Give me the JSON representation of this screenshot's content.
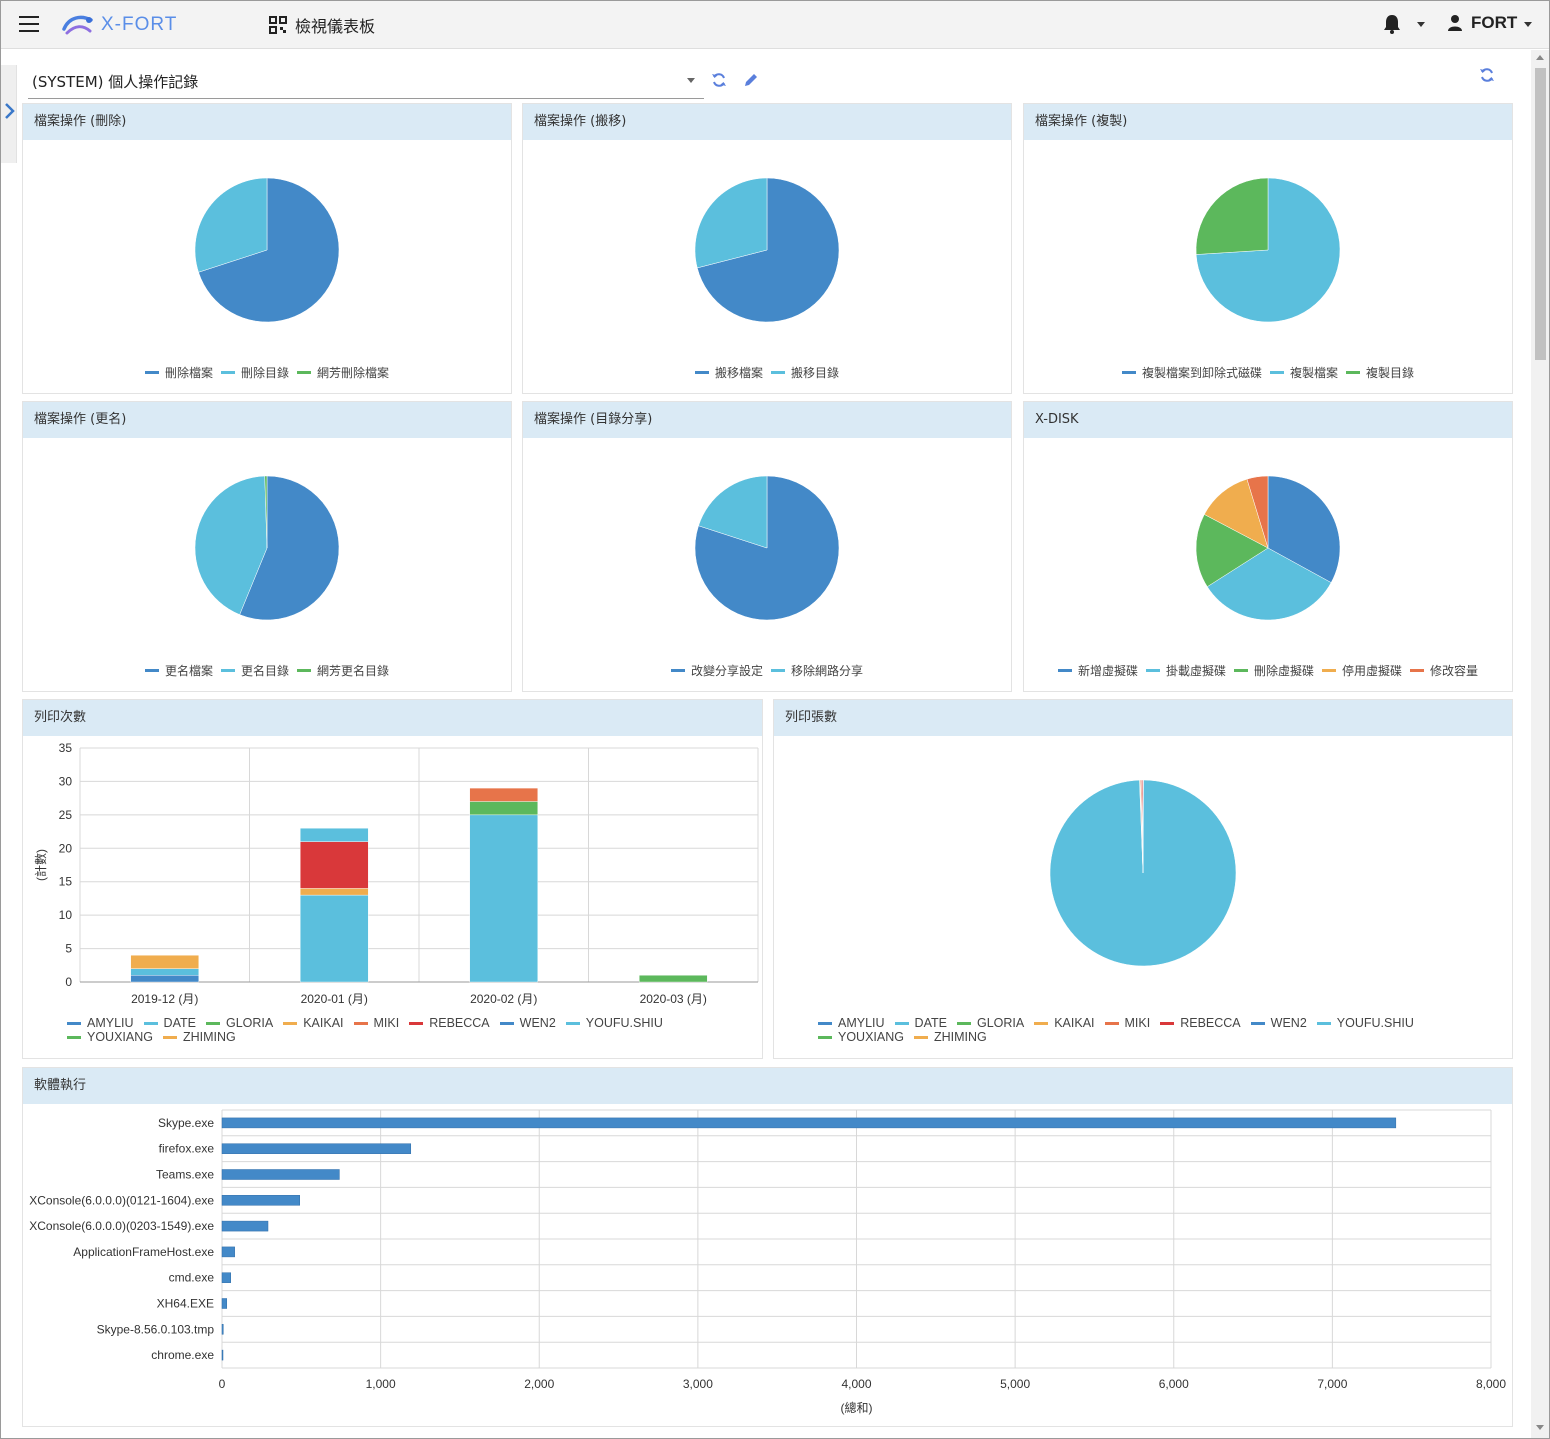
{
  "app": {
    "brand": "X-FORT",
    "dashboard_title": "檢視儀表板",
    "user": "FORT"
  },
  "selector": {
    "value": "(SYSTEM) 個人操作記錄"
  },
  "icons": {
    "menu": "hamburger-icon",
    "logo": "xfort-logo-icon",
    "dashboard": "qr-grid-icon",
    "bell": "bell-icon",
    "user": "user-icon",
    "refresh": "refresh-icon",
    "edit": "pencil-icon",
    "sidebar": "chevron-right-icon"
  },
  "colors": {
    "blue": "#4389c8",
    "cyan": "#5bbfdd",
    "green": "#5cb85c",
    "amber": "#f0ad4e",
    "orange": "#e7744a",
    "red": "#d9383a",
    "header": "#daeaf5"
  },
  "panels": [
    {
      "title": "檔案操作 (刪除)",
      "chart_data": {
        "type": "pie",
        "labels": [
          "刪除檔案",
          "刪除目錄",
          "網芳刪除檔案"
        ],
        "colors": [
          "#4389c8",
          "#5bbfdd",
          "#5cb85c"
        ],
        "values": [
          70,
          30,
          0
        ]
      }
    },
    {
      "title": "檔案操作 (搬移)",
      "chart_data": {
        "type": "pie",
        "labels": [
          "搬移檔案",
          "搬移目錄"
        ],
        "colors": [
          "#4389c8",
          "#5bbfdd"
        ],
        "values": [
          71,
          29
        ]
      }
    },
    {
      "title": "檔案操作 (複製)",
      "chart_data": {
        "type": "pie",
        "labels": [
          "複製檔案到卸除式磁碟",
          "複製檔案",
          "複製目錄"
        ],
        "colors": [
          "#4389c8",
          "#5bbfdd",
          "#5cb85c"
        ],
        "values": [
          0,
          74,
          26
        ]
      }
    },
    {
      "title": "檔案操作 (更名)",
      "chart_data": {
        "type": "pie",
        "labels": [
          "更名檔案",
          "更名目錄",
          "網芳更名目錄"
        ],
        "colors": [
          "#4389c8",
          "#5bbfdd",
          "#5cb85c"
        ],
        "values": [
          56.2,
          43.3,
          0.5
        ]
      }
    },
    {
      "title": "檔案操作 (目錄分享)",
      "chart_data": {
        "type": "pie",
        "labels": [
          "改變分享設定",
          "移除網路分享"
        ],
        "colors": [
          "#4389c8",
          "#5bbfdd"
        ],
        "values": [
          80,
          20
        ]
      }
    },
    {
      "title": "X-DISK",
      "chart_data": {
        "type": "pie",
        "labels": [
          "新增虛擬碟",
          "掛載虛擬碟",
          "刪除虛擬碟",
          "停用虛擬碟",
          "修改容量"
        ],
        "colors": [
          "#4389c8",
          "#5bbfdd",
          "#5cb85c",
          "#f0ad4e",
          "#e7744a"
        ],
        "values": [
          31.5,
          31.5,
          16,
          12,
          4.5
        ]
      }
    }
  ],
  "print_count": {
    "title": "列印次數",
    "chart_data": {
      "type": "bar",
      "stacked": true,
      "categories": [
        "2019-12 (月)",
        "2020-01 (月)",
        "2020-02 (月)",
        "2020-03 (月)"
      ],
      "ylabel": "(計數)",
      "ylim": [
        0,
        35
      ],
      "yticks": [
        0,
        5,
        10,
        15,
        20,
        25,
        30,
        35
      ],
      "series": [
        {
          "name": "AMYLIU",
          "color": "#4389c8",
          "values": [
            1,
            0,
            0,
            0
          ]
        },
        {
          "name": "DATE",
          "color": "#5bbfdd",
          "values": [
            1,
            13,
            25,
            0
          ]
        },
        {
          "name": "GLORIA",
          "color": "#5cb85c",
          "values": [
            0,
            0,
            2,
            1
          ]
        },
        {
          "name": "KAIKAI",
          "color": "#f0ad4e",
          "values": [
            2,
            1,
            0,
            0
          ]
        },
        {
          "name": "MIKI",
          "color": "#e7744a",
          "values": [
            0,
            0,
            2,
            0
          ]
        },
        {
          "name": "REBECCA",
          "color": "#d9383a",
          "values": [
            0,
            7,
            0,
            0
          ]
        },
        {
          "name": "WEN2",
          "color": "#4389c8",
          "values": [
            0,
            0,
            0,
            0
          ]
        },
        {
          "name": "YOUFU.SHIU",
          "color": "#5bbfdd",
          "values": [
            0,
            2,
            0,
            0
          ]
        },
        {
          "name": "YOUXIANG",
          "color": "#5cb85c",
          "values": [
            0,
            0,
            0,
            0
          ]
        },
        {
          "name": "ZHIMING",
          "color": "#f0ad4e",
          "values": [
            0,
            0,
            0,
            0
          ]
        }
      ]
    }
  },
  "print_pages": {
    "title": "列印張數",
    "chart_data": {
      "type": "pie",
      "labels": [
        "AMYLIU",
        "DATE",
        "GLORIA",
        "KAIKAI",
        "MIKI",
        "REBECCA",
        "WEN2",
        "YOUFU.SHIU",
        "YOUXIANG",
        "ZHIMING"
      ],
      "colors": [
        "#4389c8",
        "#5bbfdd",
        "#5cb85c",
        "#f0ad4e",
        "#e7744a",
        "#d9383a",
        "#4389c8",
        "#5bbfdd",
        "#5cb85c",
        "#f0ad4e"
      ],
      "values": [
        0.1,
        99.3,
        0.1,
        0.05,
        0.2,
        0.2,
        0,
        0.05,
        0,
        0
      ]
    }
  },
  "software": {
    "title": "軟體執行",
    "chart_data": {
      "type": "bar",
      "orientation": "horizontal",
      "categories": [
        "Skype.exe",
        "firefox.exe",
        "Teams.exe",
        "XConsole(6.0.0.0)(0121-1604).exe",
        "XConsole(6.0.0.0)(0203-1549).exe",
        "ApplicationFrameHost.exe",
        "cmd.exe",
        "XH64.EXE",
        "Skype-8.56.0.103.tmp",
        "chrome.exe"
      ],
      "values": [
        7400,
        1190,
        740,
        490,
        290,
        80,
        55,
        30,
        8,
        6
      ],
      "xlabel": "(總和)",
      "xlim": [
        0,
        8000
      ],
      "xticks": [
        0,
        1000,
        2000,
        3000,
        4000,
        5000,
        6000,
        7000,
        8000
      ],
      "xtick_labels": [
        "0",
        "1,000",
        "2,000",
        "3,000",
        "4,000",
        "5,000",
        "6,000",
        "7,000",
        "8,000"
      ],
      "color": "#4389c8"
    }
  }
}
